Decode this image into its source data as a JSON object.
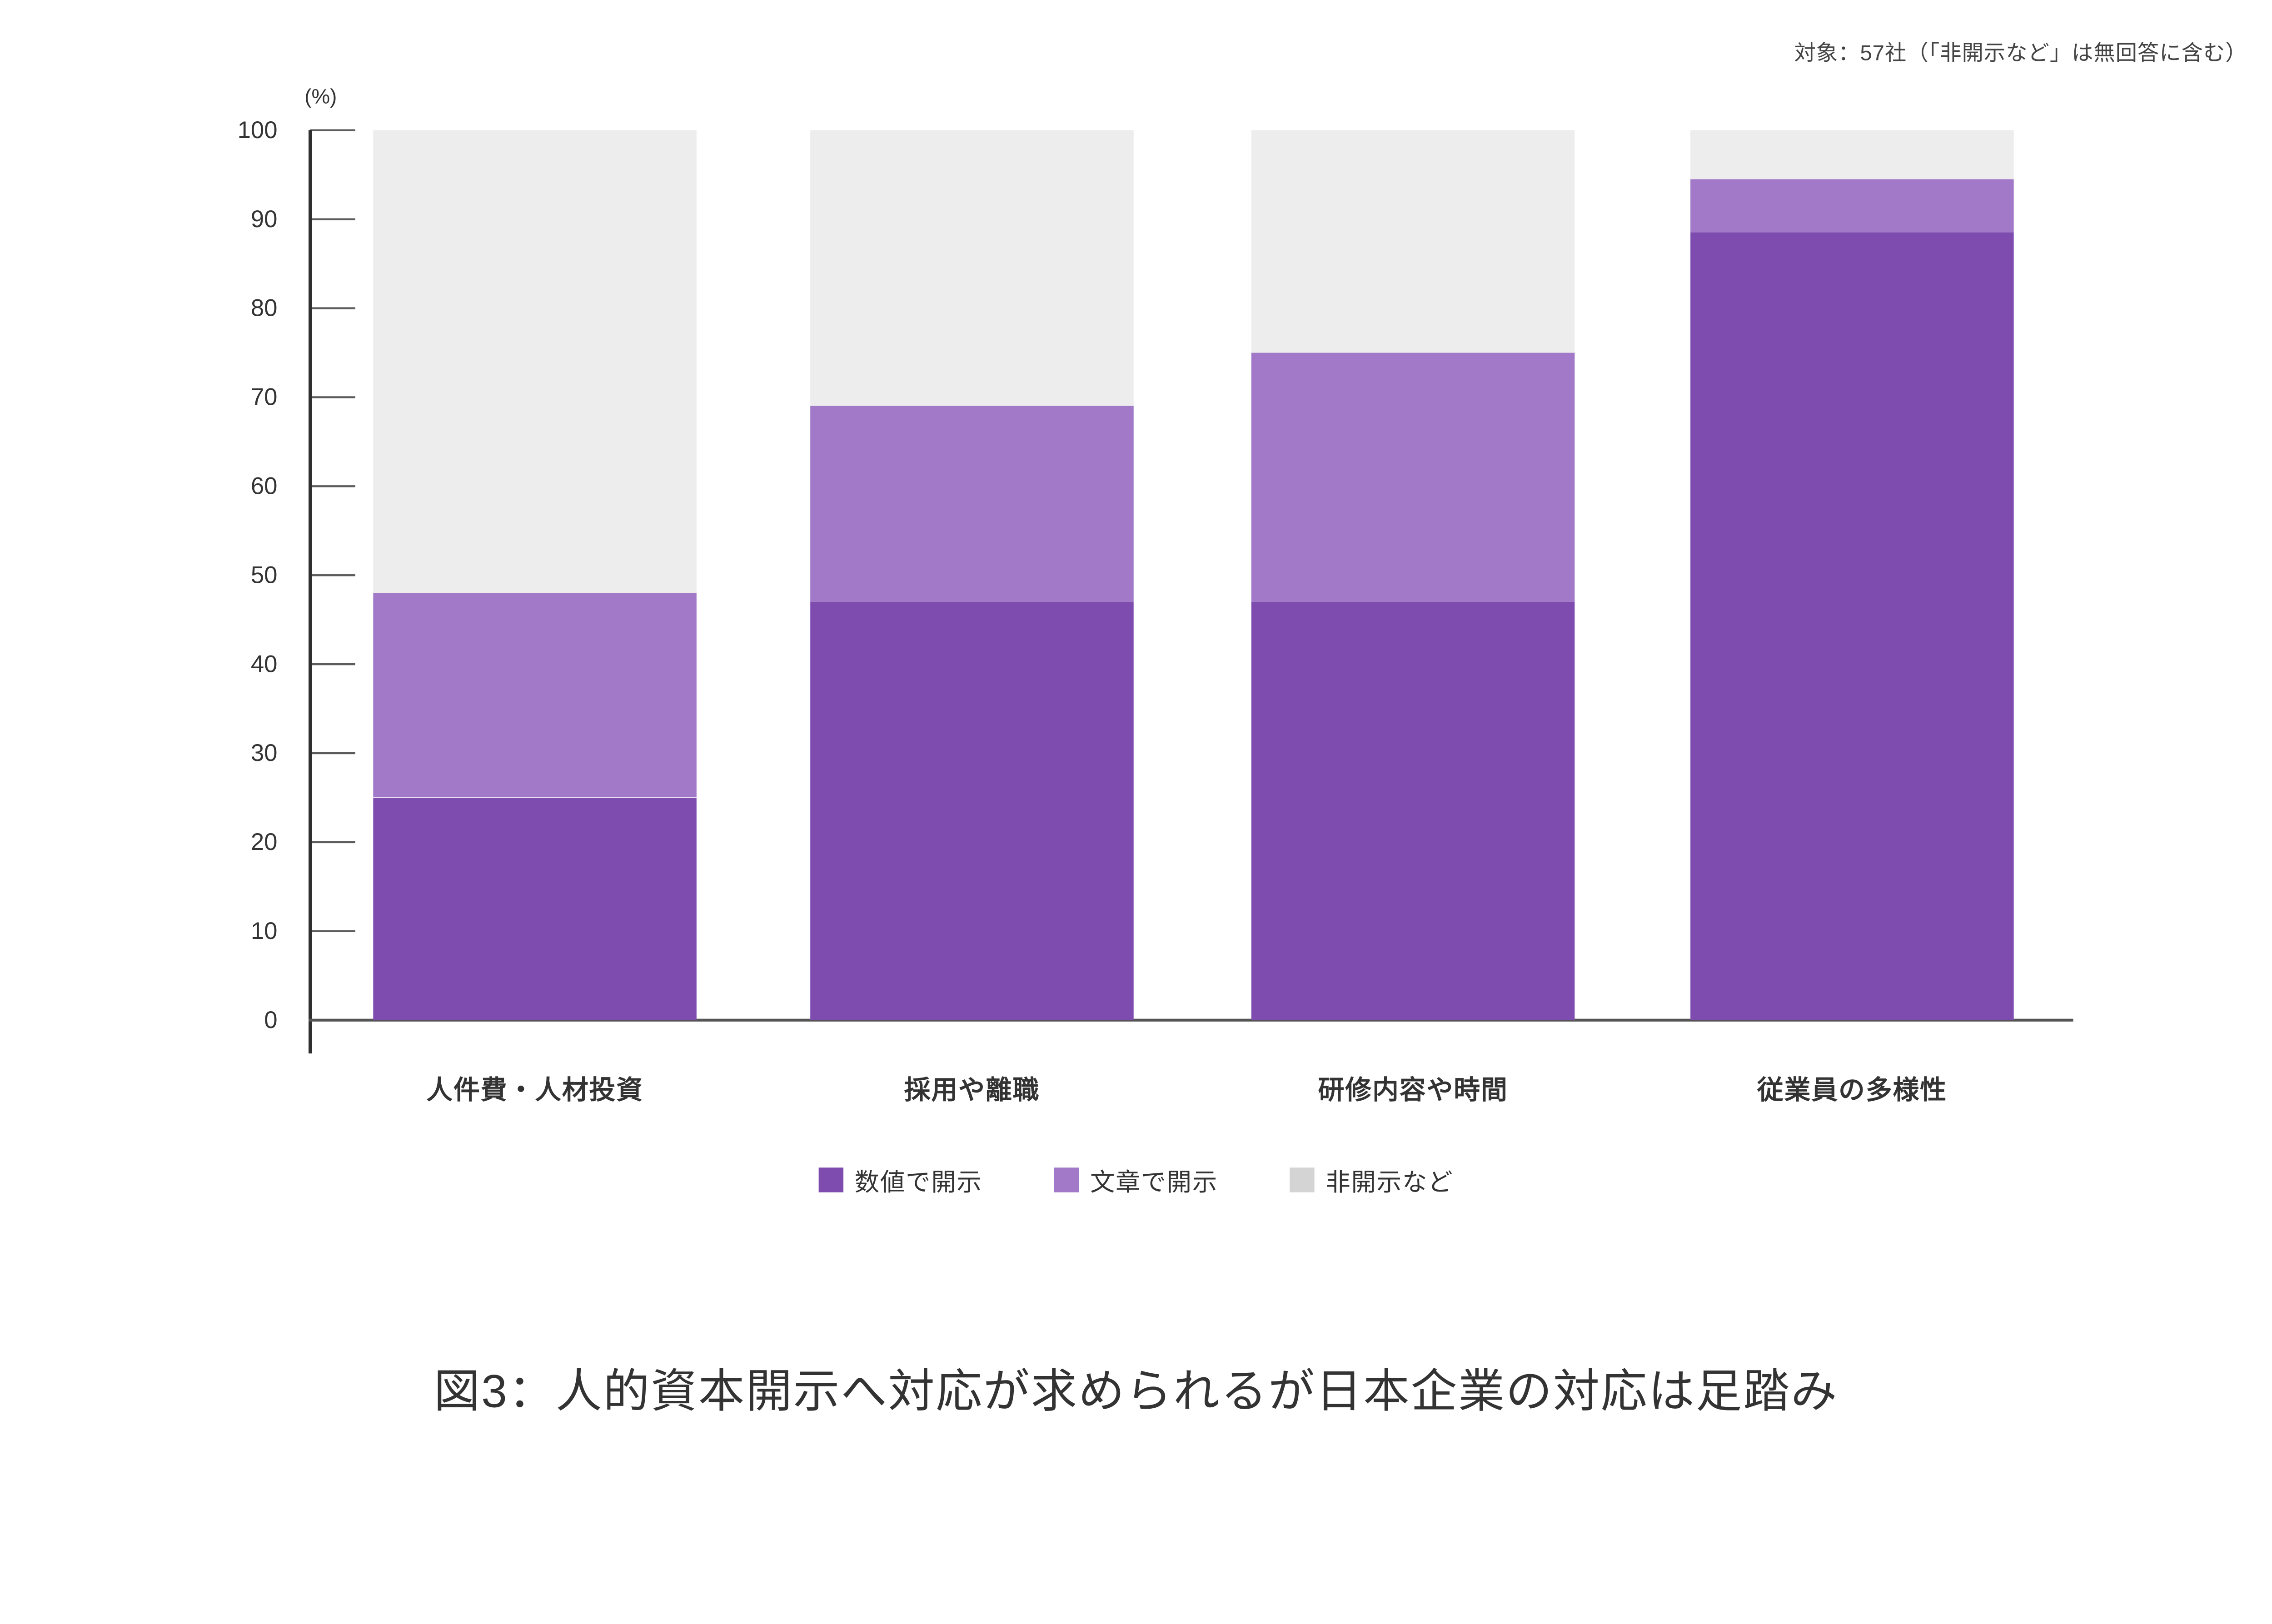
{
  "note": "対象：57社（「非開示など」は無回答に含む）",
  "title": "図3：人的資本開示へ対応が求められるが日本企業の対応は足踏み",
  "y_axis": {
    "unit": "(%)",
    "ticks": [
      0,
      10,
      20,
      30,
      40,
      50,
      60,
      70,
      80,
      90,
      100
    ],
    "min": 0,
    "max": 100
  },
  "colors": {
    "numeric": "#7e4caf",
    "text": "#a179c8",
    "nondisclosure": "#eeedee",
    "legend_nondisclosure": "#d4d4d4",
    "axis": "#2f2f2f",
    "label": "#333333"
  },
  "chart_data": {
    "type": "bar",
    "stacked": true,
    "title": "図3：人的資本開示へ対応が求められるが日本企業の対応は足踏み",
    "xlabel": "",
    "ylabel": "(%)",
    "ylim": [
      0,
      100
    ],
    "grid": false,
    "legend_position": "bottom",
    "categories": [
      "人件費・人材投資",
      "採用や離職",
      "研修内容や時間",
      "従業員の多様性"
    ],
    "series": [
      {
        "key": "numeric",
        "name": "数値で開示",
        "values": [
          25,
          47,
          47,
          88.5
        ]
      },
      {
        "key": "text",
        "name": "文章で開示",
        "values": [
          23,
          22,
          28,
          6
        ]
      },
      {
        "key": "nondisclosure",
        "name": "非開示など",
        "values": [
          52,
          31,
          25,
          5.5
        ]
      }
    ],
    "cumulative_tops": {
      "数値で開示": [
        25,
        47,
        47,
        88.5
      ],
      "文章で開示": [
        48,
        69,
        75,
        94.5
      ]
    },
    "sample_note": "対象：57社（「非開示など」は無回答に含む）"
  }
}
